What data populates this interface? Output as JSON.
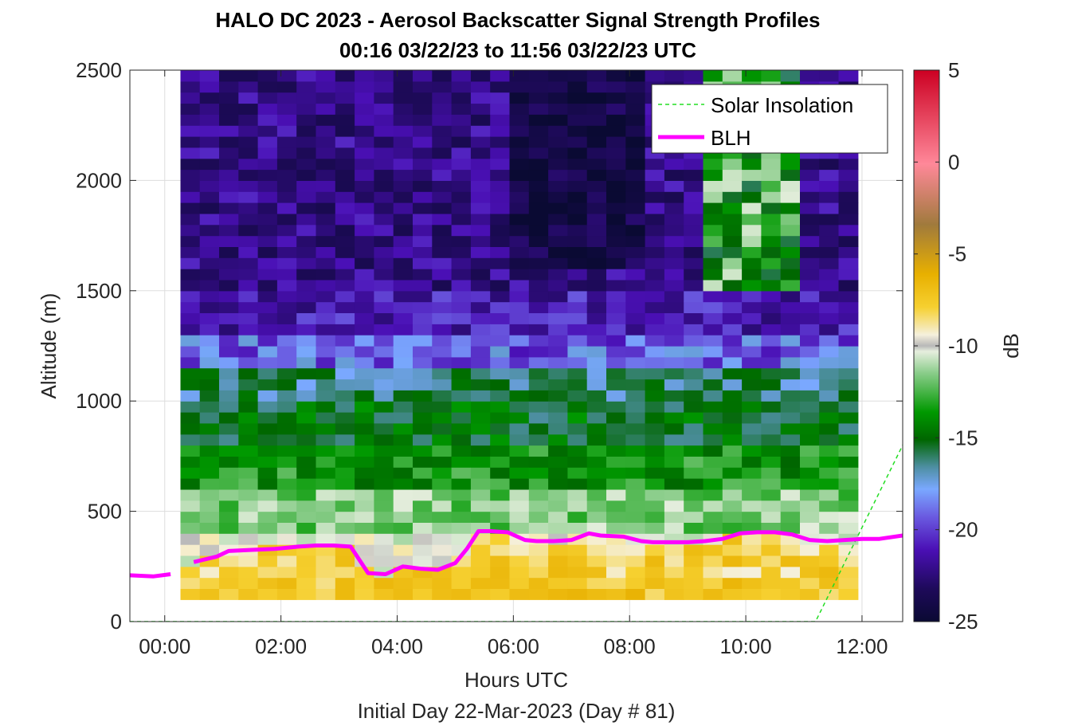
{
  "chart_data": {
    "type": "heatmap",
    "title": "HALO DC 2023 - Aerosol Backscatter Signal Strength Profiles",
    "subtitle": "00:16 03/22/23 to 11:56 03/22/23  UTC",
    "xlabel": "Hours UTC",
    "xlabel2": "Initial Day 22-Mar-2023 (Day # 81)",
    "ylabel": "Altitude (m)",
    "xlim": [
      -0.6,
      12.7
    ],
    "ylim": [
      0,
      2500
    ],
    "x_ticks": [
      0,
      2,
      4,
      6,
      8,
      10,
      12
    ],
    "x_tick_labels": [
      "00:00",
      "02:00",
      "04:00",
      "06:00",
      "08:00",
      "10:00",
      "12:00"
    ],
    "y_ticks": [
      0,
      500,
      1000,
      1500,
      2000,
      2500
    ],
    "y_tick_labels": [
      "0",
      "500",
      "1000",
      "1500",
      "2000",
      "2500"
    ],
    "grid": true,
    "colorbar": {
      "label": "dB",
      "range": [
        -25,
        5
      ],
      "ticks": [
        5,
        0,
        -5,
        -10,
        -15,
        -20,
        -25
      ],
      "tick_labels": [
        "5",
        "0",
        "-5",
        "-10",
        "-15",
        "-20",
        "-25"
      ]
    },
    "legend": {
      "position": "top-right",
      "entries": [
        {
          "label": "Solar Insolation",
          "color": "#22dd22",
          "style": "dashed"
        },
        {
          "label": "BLH",
          "color": "#ff00ff",
          "style": "solid"
        }
      ]
    },
    "heatmap_grid": {
      "x_start_hour": 0.27,
      "x_end_hour": 11.93,
      "altitude_start_m": 100,
      "altitude_end_m": 2500,
      "columns": 35,
      "rows": 48,
      "layers_db": [
        {
          "top_m": 200,
          "value": -7.5
        },
        {
          "top_m": 400,
          "value": -10.5
        },
        {
          "top_m": 600,
          "value": -12.5
        },
        {
          "top_m": 800,
          "value": -14.5
        },
        {
          "top_m": 1000,
          "value": -16
        },
        {
          "top_m": 1150,
          "value": -17
        },
        {
          "top_m": 1300,
          "value": -19.5
        },
        {
          "top_m": 1500,
          "value": -21
        },
        {
          "top_m": 2500,
          "value": -22
        }
      ]
    },
    "series": [
      {
        "name": "BLH",
        "x": [
          -0.6,
          -0.2,
          0.1,
          0.5,
          0.9,
          1.1,
          1.5,
          1.9,
          2.3,
          2.6,
          2.9,
          3.2,
          3.5,
          3.8,
          4.1,
          4.4,
          4.7,
          5.0,
          5.2,
          5.4,
          5.6,
          5.9,
          6.2,
          6.4,
          6.7,
          7.0,
          7.3,
          7.5,
          7.9,
          8.2,
          8.4,
          8.7,
          9.0,
          9.3,
          9.6,
          9.9,
          10.2,
          10.5,
          10.8,
          11.1,
          11.4,
          11.7,
          12.0,
          12.3,
          12.7
        ],
        "y": [
          210,
          205,
          215,
          270,
          295,
          320,
          325,
          330,
          340,
          345,
          345,
          340,
          220,
          215,
          250,
          240,
          235,
          265,
          330,
          410,
          410,
          405,
          370,
          365,
          365,
          370,
          400,
          390,
          385,
          365,
          360,
          360,
          360,
          365,
          375,
          400,
          405,
          405,
          395,
          370,
          365,
          370,
          375,
          375,
          390
        ]
      },
      {
        "name": "Solar Insolation",
        "x": [
          -0.6,
          11.2,
          12.7
        ],
        "y": [
          0,
          0,
          800
        ]
      }
    ]
  }
}
